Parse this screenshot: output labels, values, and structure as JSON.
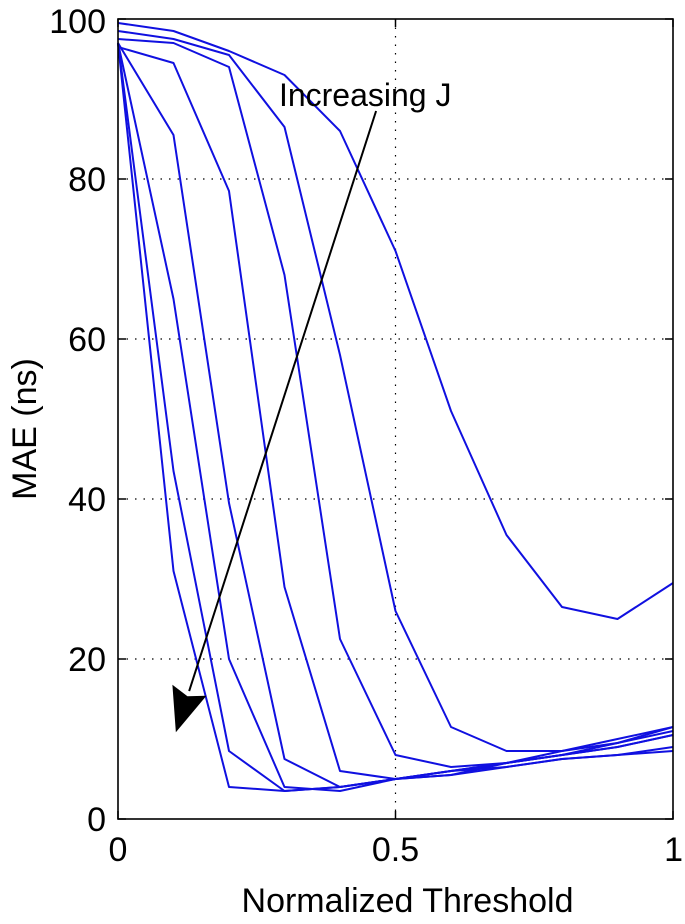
{
  "chart_data": {
    "type": "line",
    "xlabel": "Normalized Threshold",
    "ylabel": "MAE (ns)",
    "xlim": [
      0,
      1
    ],
    "ylim": [
      0,
      100
    ],
    "xticks": [
      0,
      0.5,
      1
    ],
    "xtick_labels": [
      "0",
      "0.5",
      "1"
    ],
    "yticks": [
      0,
      20,
      40,
      60,
      80,
      100
    ],
    "ytick_labels": [
      "0",
      "20",
      "40",
      "60",
      "80",
      "100"
    ],
    "grid": true,
    "line_color": "#1010e0",
    "series": [
      {
        "x": [
          0,
          0.1,
          0.2,
          0.3,
          0.4,
          0.5,
          0.6,
          0.7,
          0.8,
          0.9,
          1.0
        ],
        "values": [
          99.5,
          98.5,
          96,
          93,
          86,
          71,
          51,
          35.5,
          26.5,
          25,
          29.5
        ]
      },
      {
        "x": [
          0,
          0.1,
          0.2,
          0.3,
          0.4,
          0.5,
          0.6,
          0.7,
          0.8,
          0.9,
          1.0
        ],
        "values": [
          98.5,
          97.5,
          95.5,
          86.5,
          58,
          26,
          11.5,
          8.5,
          8.5,
          9.5,
          11.5
        ]
      },
      {
        "x": [
          0,
          0.1,
          0.2,
          0.3,
          0.4,
          0.5,
          0.6,
          0.7,
          0.8,
          0.9,
          1.0
        ],
        "values": [
          97.5,
          97,
          94,
          68,
          22.5,
          8,
          6.5,
          7,
          8,
          9,
          10.5
        ]
      },
      {
        "x": [
          0,
          0.1,
          0.2,
          0.3,
          0.4,
          0.5,
          0.6,
          0.7,
          0.8,
          0.9,
          1.0
        ],
        "values": [
          96.5,
          94.5,
          78.5,
          29,
          6,
          5,
          5.5,
          7,
          8.5,
          10,
          11.5
        ]
      },
      {
        "x": [
          0,
          0.1,
          0.2,
          0.3,
          0.4,
          0.5,
          0.6,
          0.7,
          0.8,
          0.9,
          1.0
        ],
        "values": [
          97,
          85.5,
          39.5,
          7.5,
          4,
          5,
          6,
          7,
          8,
          9.5,
          11
        ]
      },
      {
        "x": [
          0,
          0.1,
          0.2,
          0.3,
          0.4,
          0.5,
          0.6,
          0.7,
          0.8,
          0.9,
          1.0
        ],
        "values": [
          97,
          65,
          20,
          4,
          3.5,
          5,
          6,
          7,
          8,
          9,
          10.5
        ]
      },
      {
        "x": [
          0,
          0.1,
          0.2,
          0.3,
          0.4,
          0.5,
          0.6,
          0.7,
          0.8,
          0.9,
          1.0
        ],
        "values": [
          97,
          43.5,
          8.5,
          3.5,
          4,
          5,
          6,
          6.5,
          7.5,
          8,
          9
        ]
      },
      {
        "x": [
          0,
          0.1,
          0.2,
          0.3,
          0.4,
          0.5,
          0.6,
          0.7,
          0.8,
          0.9,
          1.0
        ],
        "values": [
          97,
          31,
          4,
          3.5,
          4,
          5,
          5.5,
          6.5,
          7.5,
          8,
          8.5
        ]
      }
    ],
    "annotation": {
      "text": "Increasing J",
      "anchor": [
        0.29,
        90.5
      ],
      "arrow_from": [
        0.465,
        88.5
      ],
      "arrow_to": [
        0.105,
        11
      ]
    }
  }
}
